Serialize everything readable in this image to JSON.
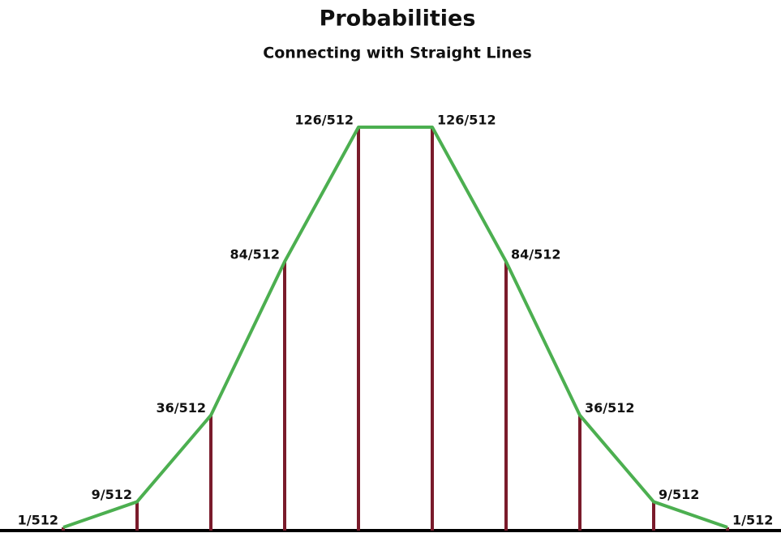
{
  "chart_data": {
    "type": "line",
    "title": "Probabilities",
    "subtitle": "Connecting with Straight Lines",
    "values": [
      0.001953125,
      0.017578125,
      0.0703125,
      0.1640625,
      0.24609375,
      0.24609375,
      0.1640625,
      0.0703125,
      0.017578125,
      0.001953125
    ],
    "value_labels": [
      "1/512",
      "9/512",
      "36/512",
      "84/512",
      "126/512",
      "126/512",
      "84/512",
      "36/512",
      "9/512",
      "1/512"
    ],
    "color": "#4caf50",
    "stem_color": "#7a1b2b"
  }
}
